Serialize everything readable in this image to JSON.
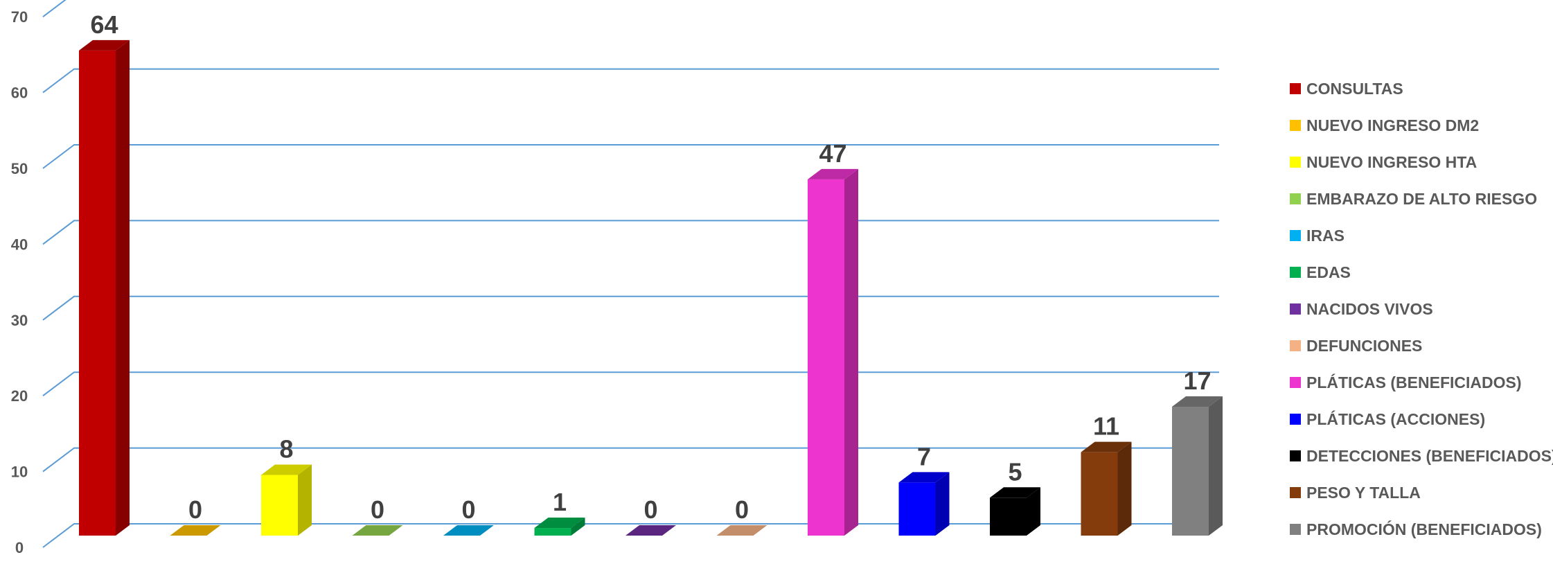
{
  "chart_data": {
    "type": "bar",
    "title": "",
    "xlabel": "",
    "ylabel": "",
    "ylim": [
      0,
      70
    ],
    "yticks": [
      0,
      10,
      20,
      30,
      40,
      50,
      60,
      70
    ],
    "grid": true,
    "legend_position": "right",
    "gridline_color": "#5B9BD5",
    "series": [
      {
        "name": "CONSULTAS",
        "value": 64,
        "color": "#C00000"
      },
      {
        "name": "NUEVO INGRESO DM2",
        "value": 0,
        "color": "#FFC000"
      },
      {
        "name": "NUEVO INGRESO HTA",
        "value": 8,
        "color": "#FFFF00"
      },
      {
        "name": "EMBARAZO DE ALTO RIESGO",
        "value": 0,
        "color": "#92D050"
      },
      {
        "name": "IRAS",
        "value": 0,
        "color": "#00B0F0"
      },
      {
        "name": "EDAS",
        "value": 1,
        "color": "#00B050"
      },
      {
        "name": "NACIDOS VIVOS",
        "value": 0,
        "color": "#7030A0"
      },
      {
        "name": "DEFUNCIONES",
        "value": 0,
        "color": "#F4B183"
      },
      {
        "name": "PLÁTICAS (BENEFICIADOS)",
        "value": 47,
        "color": "#EE34CE"
      },
      {
        "name": "PLÁTICAS (ACCIONES)",
        "value": 7,
        "color": "#0000FF"
      },
      {
        "name": "DETECCIONES (BENEFICIADOS)",
        "value": 5,
        "color": "#000000"
      },
      {
        "name": "PESO Y TALLA",
        "value": 11,
        "color": "#843C0C"
      },
      {
        "name": "PROMOCIÓN (BENEFICIADOS)",
        "value": 17,
        "color": "#808080"
      }
    ]
  }
}
